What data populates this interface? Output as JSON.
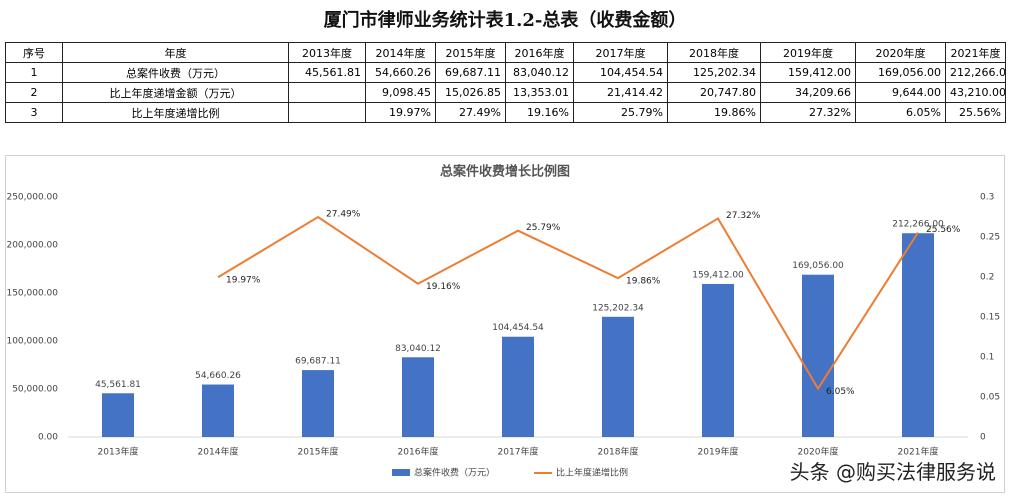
{
  "table": {
    "title": "厦门市律师业务统计表1.2-总表（收费金额）",
    "header": [
      "序号",
      "年度",
      "2013年度",
      "2014年度",
      "2015年度",
      "2016年度",
      "2017年度",
      "2018年度",
      "2019年度",
      "2020年度",
      "2021年度"
    ],
    "rows": [
      [
        "1",
        "总案件收费（万元）",
        "45,561.81",
        "54,660.26",
        "69,687.11",
        "83,040.12",
        "104,454.54",
        "125,202.34",
        "159,412.00",
        "169,056.00",
        "212,266.00"
      ],
      [
        "2",
        "比上年度递增金额（万元）",
        null,
        "9,098.45",
        "15,026.85",
        "13,353.01",
        "21,414.42",
        "20,747.80",
        "34,209.66",
        "9,644.00",
        "43,210.00"
      ],
      [
        "3",
        "比上年度递增比例",
        null,
        "19.97%",
        "27.49%",
        "19.16%",
        "25.79%",
        "19.86%",
        "27.32%",
        "6.05%",
        "25.56%"
      ]
    ]
  },
  "chart_data": {
    "type": "bar",
    "title": "总案件收费增长比例图",
    "categories": [
      "2013年度",
      "2014年度",
      "2015年度",
      "2016年度",
      "2017年度",
      "2018年度",
      "2019年度",
      "2020年度",
      "2021年度"
    ],
    "series": [
      {
        "name": "总案件收费（万元）",
        "type": "bar",
        "color": "#4472c4",
        "values": [
          45561.81,
          54660.26,
          69687.11,
          83040.12,
          104454.54,
          125202.34,
          159412.0,
          169056.0,
          212266.0
        ],
        "value_labels": [
          "45,561.81",
          "54,660.26",
          "69,687.11",
          "83,040.12",
          "104,454.54",
          "125,202.34",
          "159,412.00",
          "169,056.00",
          "212,266.00"
        ]
      },
      {
        "name": "比上年度递增比例",
        "type": "line",
        "axis": "y2",
        "color": "#ed7d31",
        "values": [
          null,
          0.1997,
          0.2749,
          0.1916,
          0.2579,
          0.1986,
          0.2732,
          0.0605,
          0.2556
        ],
        "value_labels": [
          null,
          "19.97%",
          "27.49%",
          "19.16%",
          "25.79%",
          "19.86%",
          "27.32%",
          "6.05%",
          "25.56%"
        ]
      }
    ],
    "ylim": [
      0,
      250000
    ],
    "yticks": [
      {
        "value": 0,
        "label": "0.00"
      },
      {
        "value": 50000,
        "label": "50,000.00"
      },
      {
        "value": 100000,
        "label": "100,000.00"
      },
      {
        "value": 150000,
        "label": "150,000.00"
      },
      {
        "value": 200000,
        "label": "200,000.00"
      },
      {
        "value": 250000,
        "label": "250,000.00"
      }
    ],
    "y2lim": [
      0,
      0.3
    ],
    "y2ticks": [
      0,
      0.05,
      0.1,
      0.15,
      0.2,
      0.25,
      0.3
    ],
    "grid": false,
    "legend": "bottom"
  },
  "watermark": "头条 @购买法律服务说"
}
